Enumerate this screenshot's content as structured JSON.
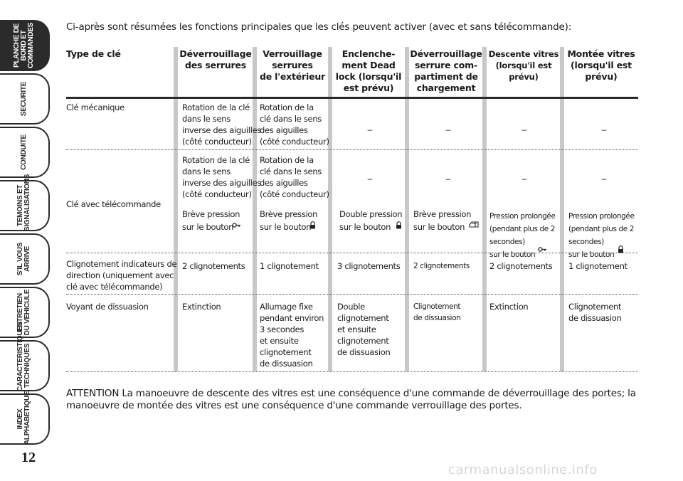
{
  "sidebar": {
    "tabs": [
      {
        "label": "PLANCHE DE\nBORD ET\nCOMMANDES",
        "active": true
      },
      {
        "label": "SECURITE",
        "active": false
      },
      {
        "label": "CONDUITE",
        "active": false
      },
      {
        "label": "TEMOINS ET\nSIGNALISATIONS",
        "active": false
      },
      {
        "label": "S'IL VOUS\nARRIVE",
        "active": false
      },
      {
        "label": "ENTRETIEN\nDU VEHICULE",
        "active": false
      },
      {
        "label": "CARACTERISTIQUES\nTECHNIQUES",
        "active": false
      },
      {
        "label": "INDEX\nALPHABETIQUE",
        "active": false
      }
    ],
    "page_number": "12"
  },
  "intro": "Ci-après sont résumées les fonctions principales que les clés peuvent activer (avec et sans télécommande):",
  "table": {
    "headers": [
      "Type de clé",
      "Déverrouillage\ndes serrures",
      "Verrouillage\nserrures\nde l'extérieur",
      "Enclenche-\nment Dead\nlock (lorsqu'il\nest prévu)",
      "Déverrouillage\nserrure com-\npartiment de\nchargement",
      "Descente vitres\n(lorsqu'il est\nprévu)",
      "Montée vitres\n(lorsqu'il est\nprévu)"
    ],
    "dash": "–",
    "rows": {
      "cle_mecanique": {
        "type": "Clé mécanique",
        "deverrouillage": "Rotation de la clé\ndans le sens\ninverse des aiguilles\n(côté conducteur)",
        "verrouillage": "Rotation de la\nclé dans le sens\ndes aiguilles\n(côté conducteur)"
      },
      "cle_telecommande": {
        "type": "Clé avec télécommande",
        "deverrouillage": "Rotation de la clé\ndans le sens\ninverse des aiguilles\n(côté conducteur)",
        "verrouillage": "Rotation de la\nclé dans le sens\ndes aiguilles\n(côté conducteur)",
        "deverrouillage_btn": "Brève pression\nsur le bouton",
        "verrouillage_btn": "Brève pression\nsur le bouton",
        "deadlock_btn": "Double pression\nsur le bouton",
        "chargement_btn": "Brève pression\nsur le bouton",
        "descente_btn": "Pression prolongée\n(pendant plus de 2\nsecondes)\nsur le bouton",
        "montee_btn": "Pression prolongée\n(pendant plus de 2\nsecondes)\nsur le bouton"
      },
      "clignotement": {
        "type": "Clignotement indicateurs de\ndirection (uniquement avec\nclé avec télécommande)",
        "deverrouillage": "2 clignotements",
        "verrouillage": "1 clignotement",
        "deadlock": "3 clignotements",
        "chargement": "2 clignotements",
        "descente": "2 clignotements",
        "montee": "1 clignotement"
      },
      "voyant": {
        "type": "Voyant de dissuasion",
        "deverrouillage": "Extinction",
        "verrouillage": "Allumage fixe\npendant environ\n3 secondes\net ensuite\nclignotement\nde dissuasion",
        "deadlock": "Double\nclignotement\net ensuite\nclignotement\nde dissuasion",
        "chargement": "Clignotement\nde dissuasion",
        "descente": "Extinction",
        "montee": "Clignotement\nde dissuasion"
      }
    }
  },
  "attention": "ATTENTION La manoeuvre de descente des vitres est une conséquence d'une commande de déverrouillage des portes; la manoeuvre de montée des vitres est une conséquence d'une commande verrouillage des portes.",
  "watermark": "carmanualsonline.info"
}
